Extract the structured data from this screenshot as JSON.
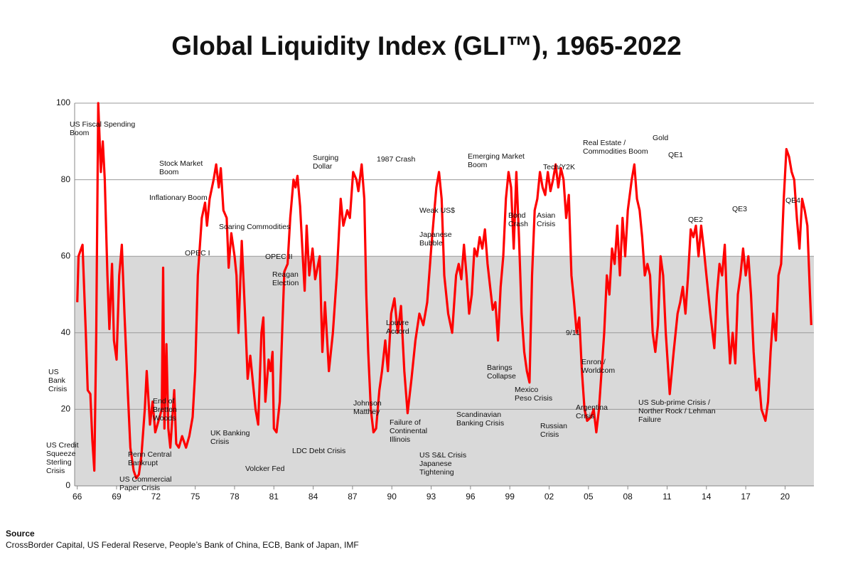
{
  "chart_data": {
    "type": "line",
    "title": "Global Liquidity Index (GLI™), 1965-2022",
    "source_heading": "Source",
    "source": "CrossBorder Capital, US Federal Reserve, People’s Bank of China, ECB, Bank of Japan, IMF",
    "color": "#ff0000",
    "grid": true,
    "band": {
      "ylim": [
        0,
        60
      ],
      "color": "#d9d9d9"
    },
    "xlim": [
      1965.8,
      2022.2
    ],
    "ylim": [
      0,
      100
    ],
    "yticks": [
      0,
      20,
      40,
      60,
      80,
      100
    ],
    "xticks": [
      {
        "value": 1966,
        "label": "66"
      },
      {
        "value": 1969,
        "label": "69"
      },
      {
        "value": 1972,
        "label": "72"
      },
      {
        "value": 1975,
        "label": "75"
      },
      {
        "value": 1978,
        "label": "78"
      },
      {
        "value": 1981,
        "label": "81"
      },
      {
        "value": 1984,
        "label": "84"
      },
      {
        "value": 1987,
        "label": "87"
      },
      {
        "value": 1990,
        "label": "90"
      },
      {
        "value": 1993,
        "label": "93"
      },
      {
        "value": 1996,
        "label": "96"
      },
      {
        "value": 1999,
        "label": "99"
      },
      {
        "value": 2002,
        "label": "02"
      },
      {
        "value": 2005,
        "label": "05"
      },
      {
        "value": 2008,
        "label": "08"
      },
      {
        "value": 2011,
        "label": "11"
      },
      {
        "value": 2014,
        "label": "14"
      },
      {
        "value": 2017,
        "label": "17"
      },
      {
        "value": 2020,
        "label": "20"
      }
    ],
    "x": [
      1966.0,
      1966.1,
      1966.4,
      1966.65,
      1966.8,
      1967.0,
      1967.15,
      1967.3,
      1967.45,
      1967.6,
      1967.8,
      1967.95,
      1968.1,
      1968.3,
      1968.45,
      1968.65,
      1968.8,
      1969.0,
      1969.2,
      1969.4,
      1969.6,
      1969.85,
      1970.05,
      1970.3,
      1970.5,
      1970.7,
      1970.9,
      1971.15,
      1971.3,
      1971.55,
      1971.75,
      1971.95,
      1972.45,
      1972.55,
      1972.65,
      1972.8,
      1972.95,
      1973.1,
      1973.4,
      1973.55,
      1973.75,
      1974.0,
      1974.3,
      1974.55,
      1974.8,
      1975.0,
      1975.2,
      1975.5,
      1975.75,
      1975.9,
      1976.1,
      1976.4,
      1976.6,
      1976.8,
      1976.95,
      1977.15,
      1977.4,
      1977.55,
      1977.75,
      1978.0,
      1978.15,
      1978.3,
      1978.55,
      1978.8,
      1979.0,
      1979.2,
      1979.4,
      1979.6,
      1979.8,
      1980.05,
      1980.2,
      1980.35,
      1980.6,
      1980.75,
      1980.9,
      1981.0,
      1981.2,
      1981.45,
      1981.65,
      1981.8,
      1982.05,
      1982.25,
      1982.5,
      1982.65,
      1982.8,
      1983.0,
      1983.2,
      1983.35,
      1983.5,
      1983.7,
      1983.95,
      1984.15,
      1984.5,
      1984.7,
      1984.9,
      1985.2,
      1985.5,
      1985.8,
      1986.1,
      1986.3,
      1986.6,
      1986.8,
      1987.05,
      1987.3,
      1987.45,
      1987.7,
      1987.9,
      1988.05,
      1988.2,
      1988.4,
      1988.6,
      1988.8,
      1989.05,
      1989.25,
      1989.5,
      1989.7,
      1989.95,
      1990.2,
      1990.45,
      1990.7,
      1990.95,
      1991.2,
      1991.5,
      1991.8,
      1992.1,
      1992.4,
      1992.7,
      1993.0,
      1993.2,
      1993.4,
      1993.6,
      1993.8,
      1994.0,
      1994.3,
      1994.6,
      1994.9,
      1995.1,
      1995.3,
      1995.5,
      1995.7,
      1995.9,
      1996.1,
      1996.3,
      1996.5,
      1996.7,
      1996.9,
      1997.1,
      1997.3,
      1997.5,
      1997.7,
      1997.9,
      1998.1,
      1998.3,
      1998.5,
      1998.7,
      1998.9,
      1999.1,
      1999.3,
      1999.5,
      1999.7,
      1999.9,
      2000.1,
      2000.3,
      2000.5,
      2000.7,
      2000.9,
      2001.1,
      2001.3,
      2001.5,
      2001.7,
      2001.9,
      2002.1,
      2002.3,
      2002.5,
      2002.7,
      2002.9,
      2003.1,
      2003.3,
      2003.5,
      2003.7,
      2003.9,
      2004.1,
      2004.3,
      2004.5,
      2004.7,
      2004.9,
      2005.2,
      2005.4,
      2005.6,
      2005.8,
      2006.0,
      2006.2,
      2006.4,
      2006.6,
      2006.8,
      2007.0,
      2007.2,
      2007.4,
      2007.6,
      2007.8,
      2008.0,
      2008.3,
      2008.5,
      2008.7,
      2008.9,
      2009.1,
      2009.3,
      2009.5,
      2009.7,
      2009.9,
      2010.1,
      2010.3,
      2010.5,
      2010.7,
      2010.9,
      2011.2,
      2011.5,
      2011.8,
      2012.0,
      2012.2,
      2012.4,
      2012.6,
      2012.8,
      2013.0,
      2013.2,
      2013.4,
      2013.6,
      2013.8,
      2014.0,
      2014.3,
      2014.6,
      2014.8,
      2015.0,
      2015.2,
      2015.4,
      2015.6,
      2015.8,
      2016.0,
      2016.2,
      2016.4,
      2016.6,
      2016.8,
      2017.0,
      2017.2,
      2017.4,
      2017.6,
      2017.8,
      2018.0,
      2018.2,
      2018.5,
      2018.7,
      2018.9,
      2019.1,
      2019.3,
      2019.5,
      2019.7,
      2019.9,
      2020.1,
      2020.3,
      2020.5,
      2020.7,
      2020.9,
      2021.1,
      2021.3,
      2021.5,
      2021.7,
      2021.9,
      2022.0
    ],
    "values": [
      48,
      60,
      63,
      40,
      25,
      24,
      12,
      4,
      40,
      100,
      82,
      90,
      80,
      55,
      41,
      58,
      38,
      33,
      55,
      63,
      45,
      25,
      10,
      4,
      2,
      3,
      8,
      20,
      30,
      16,
      22,
      14,
      20,
      57,
      15,
      37,
      15,
      10,
      25,
      11,
      10,
      13,
      10,
      13,
      18,
      30,
      55,
      70,
      74,
      68,
      75,
      80,
      84,
      78,
      83,
      72,
      70,
      57,
      66,
      60,
      55,
      40,
      64,
      45,
      28,
      34,
      27,
      20,
      16,
      40,
      44,
      22,
      33,
      30,
      35,
      15,
      14,
      22,
      42,
      56,
      58,
      70,
      80,
      78,
      81,
      73,
      60,
      51,
      68,
      55,
      62,
      54,
      60,
      35,
      48,
      30,
      40,
      55,
      75,
      68,
      72,
      70,
      82,
      80,
      77,
      84,
      75,
      50,
      35,
      20,
      14,
      15,
      25,
      30,
      38,
      30,
      45,
      49,
      40,
      47,
      30,
      19,
      28,
      38,
      45,
      42,
      48,
      62,
      70,
      78,
      82,
      75,
      55,
      45,
      40,
      55,
      58,
      54,
      63,
      55,
      45,
      50,
      62,
      60,
      65,
      62,
      67,
      58,
      52,
      46,
      48,
      38,
      52,
      60,
      75,
      82,
      78,
      62,
      82,
      65,
      45,
      35,
      30,
      27,
      55,
      72,
      75,
      82,
      78,
      76,
      82,
      77,
      80,
      84,
      78,
      83,
      80,
      70,
      76,
      55,
      48,
      40,
      44,
      30,
      20,
      17,
      18,
      20,
      14,
      20,
      30,
      40,
      55,
      50,
      62,
      58,
      68,
      55,
      70,
      60,
      72,
      80,
      84,
      75,
      72,
      65,
      55,
      58,
      55,
      40,
      35,
      42,
      60,
      55,
      40,
      24,
      35,
      45,
      48,
      52,
      45,
      55,
      67,
      65,
      68,
      60,
      68,
      62,
      55,
      45,
      36,
      50,
      58,
      55,
      63,
      45,
      32,
      40,
      32,
      50,
      55,
      62,
      55,
      60,
      50,
      35,
      25,
      28,
      20,
      17,
      22,
      35,
      45,
      38,
      55,
      58,
      75,
      88,
      86,
      82,
      80,
      70,
      62,
      75,
      72,
      68,
      50,
      42
    ],
    "annotations": [
      {
        "lines": [
          "US Fiscal Spending",
          "Boom"
        ]
      },
      {
        "lines": [
          "Stock Market",
          "Boom"
        ]
      },
      {
        "lines": [
          "Inflationary Boom"
        ]
      },
      {
        "lines": [
          "Soaring Commodities"
        ]
      },
      {
        "lines": [
          "OPEC I"
        ]
      },
      {
        "lines": [
          "OPEC II"
        ]
      },
      {
        "lines": [
          "Reagan",
          "Election"
        ]
      },
      {
        "lines": [
          "Surging",
          "Dollar"
        ]
      },
      {
        "lines": [
          "1987 Crash"
        ]
      },
      {
        "lines": [
          "Weak US$"
        ]
      },
      {
        "lines": [
          "Japanese",
          "Bubble"
        ]
      },
      {
        "lines": [
          "Emerging  Market",
          "Boom"
        ]
      },
      {
        "lines": [
          "Bond",
          "Crash"
        ]
      },
      {
        "lines": [
          "Asian",
          "Crisis"
        ]
      },
      {
        "lines": [
          "Tech/Y2K"
        ]
      },
      {
        "lines": [
          "Real Estate /",
          "Commodities Boom"
        ]
      },
      {
        "lines": [
          "Gold"
        ]
      },
      {
        "lines": [
          "QE1"
        ]
      },
      {
        "lines": [
          "QE2"
        ]
      },
      {
        "lines": [
          "QE3"
        ]
      },
      {
        "lines": [
          "QE4"
        ]
      },
      {
        "lines": [
          "Louvre",
          "Accord"
        ]
      },
      {
        "lines": [
          "9/11"
        ]
      },
      {
        "lines": [
          "Enron /",
          "Worldcom"
        ]
      },
      {
        "lines": [
          "Barings",
          "Collapse"
        ]
      },
      {
        "lines": [
          "Mexico",
          "Peso Crisis"
        ]
      },
      {
        "lines": [
          "US",
          "Bank",
          "Crisis"
        ]
      },
      {
        "lines": [
          "End of",
          "Bretton",
          "Woods"
        ]
      },
      {
        "lines": [
          "Johnson",
          "Matthey"
        ]
      },
      {
        "lines": [
          "Failure of",
          "Continental",
          "Illinois"
        ]
      },
      {
        "lines": [
          "Scandinavian",
          "Banking Crisis"
        ]
      },
      {
        "lines": [
          "Argentina",
          "Crisis"
        ]
      },
      {
        "lines": [
          "US Sub-prime Crisis /",
          "Norther Rock / Lehman",
          "Failure"
        ]
      },
      {
        "lines": [
          "Russian",
          "Crisis"
        ]
      },
      {
        "lines": [
          "UK Banking",
          "Crisis"
        ]
      },
      {
        "lines": [
          "US Credit",
          "Squeeze",
          "Sterling",
          "Crisis"
        ]
      },
      {
        "lines": [
          "Penn Central",
          "Bankrupt"
        ]
      },
      {
        "lines": [
          "LDC Debt Crisis"
        ]
      },
      {
        "lines": [
          "US S&L Crisis",
          "Japanese",
          "Tightening"
        ]
      },
      {
        "lines": [
          "Volcker Fed"
        ]
      },
      {
        "lines": [
          "US Commercial",
          "Paper Crisis"
        ]
      }
    ]
  }
}
